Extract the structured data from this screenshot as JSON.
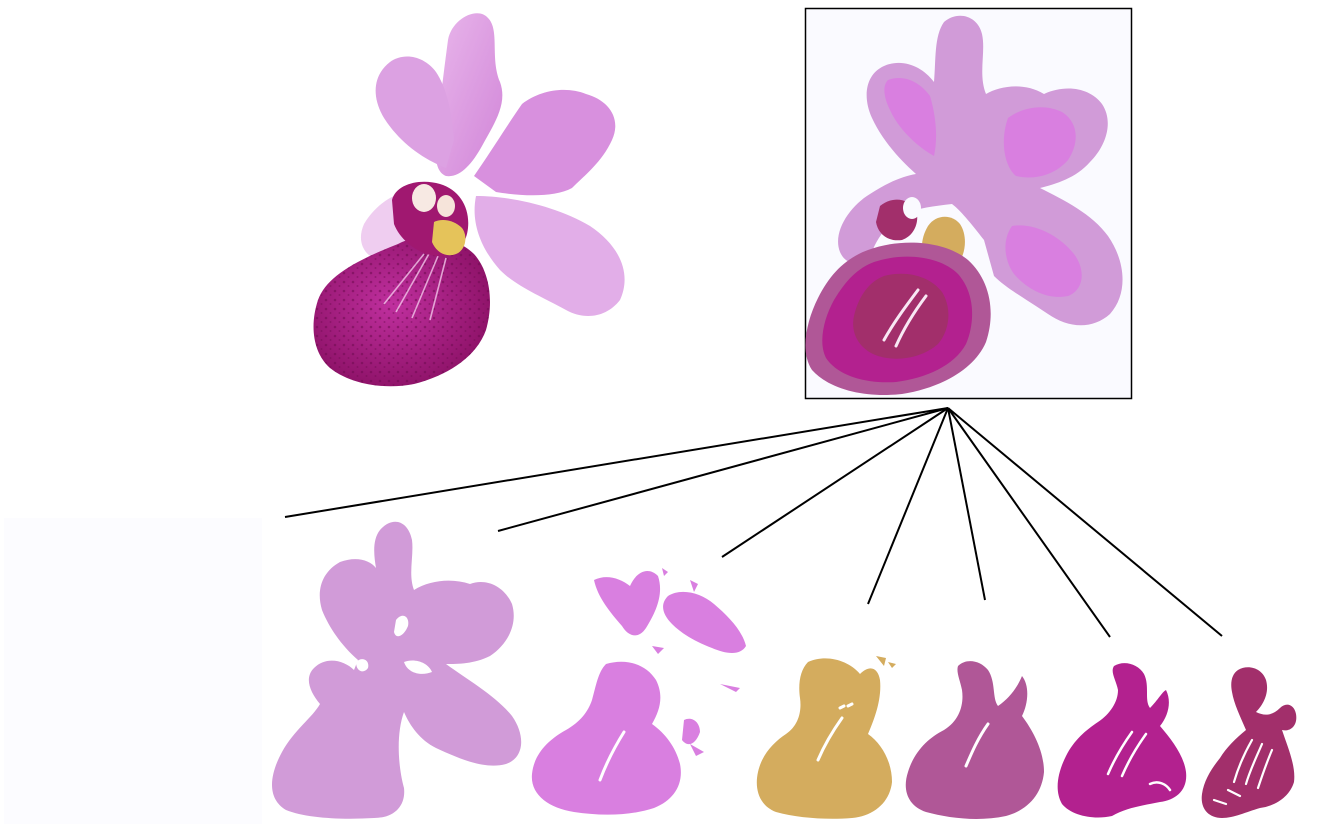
{
  "figure": {
    "background": "#ffffff",
    "line_color": "#000000",
    "frame_color": "#000000"
  },
  "photo": {
    "kind": "photographic orchid flower",
    "colors": {
      "petal_light": "#e9b8ec",
      "petal": "#d68fdc",
      "petal_dark": "#c472cc",
      "lip": "#b3228f",
      "lip_dark": "#8c1166",
      "column": "#f7e9e3",
      "center": "#e5c35a"
    }
  },
  "vector": {
    "kind": "layered vector reconstruction of the orchid",
    "background": "#fafaff"
  },
  "layers": [
    {
      "id": "layer-0",
      "role": "background",
      "color": "#fcfcff"
    },
    {
      "id": "layer-1",
      "role": "light petals",
      "color": "#d19bd8"
    },
    {
      "id": "layer-2",
      "role": "medium petals",
      "color": "#d97fe0"
    },
    {
      "id": "layer-3",
      "role": "gold center",
      "color": "#d4ac5e"
    },
    {
      "id": "layer-4",
      "role": "mauve lip",
      "color": "#b05797"
    },
    {
      "id": "layer-5",
      "role": "magenta lip",
      "color": "#b3218f"
    },
    {
      "id": "layer-6",
      "role": "dark lip detail",
      "color": "#a22f6b"
    }
  ]
}
